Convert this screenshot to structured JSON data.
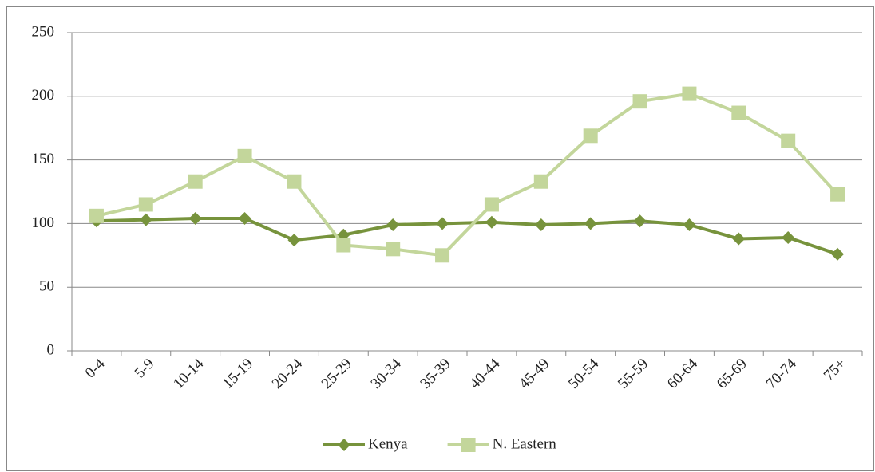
{
  "chart_data": {
    "type": "line",
    "categories": [
      "0-4",
      "5-9",
      "10-14",
      "15-19",
      "20-24",
      "25-29",
      "30-34",
      "35-39",
      "40-44",
      "45-49",
      "50-54",
      "55-59",
      "60-64",
      "65-69",
      "70-74",
      "75+"
    ],
    "series": [
      {
        "name": "Kenya",
        "color": "#77933c",
        "marker": "diamond",
        "values": [
          102,
          103,
          104,
          104,
          87,
          91,
          99,
          100,
          101,
          99,
          100,
          102,
          99,
          88,
          89,
          76
        ]
      },
      {
        "name": "N. Eastern",
        "color": "#c3d69b",
        "marker": "square",
        "values": [
          106,
          115,
          133,
          153,
          133,
          83,
          80,
          75,
          115,
          133,
          169,
          196,
          202,
          187,
          165,
          123
        ]
      }
    ],
    "ylim": [
      0,
      250
    ],
    "yticks": [
      0,
      50,
      100,
      150,
      200,
      250
    ],
    "grid": true,
    "legend": "bottom"
  }
}
